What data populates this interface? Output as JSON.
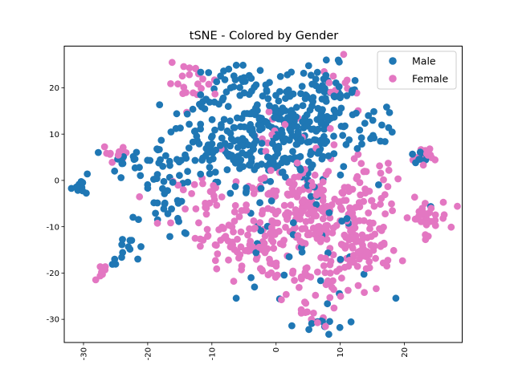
{
  "chart_data": {
    "type": "scatter",
    "title": "tSNE - Colored by Gender",
    "xlabel": "",
    "ylabel": "",
    "xlim": [
      -33,
      29
    ],
    "ylim": [
      -35,
      29
    ],
    "xticks": [
      -30,
      -20,
      -10,
      0,
      10,
      20
    ],
    "yticks": [
      -30,
      -20,
      -10,
      0,
      10,
      20
    ],
    "xtick_rotation": 90,
    "grid": false,
    "legend_position": "top-right",
    "series": [
      {
        "name": "Male",
        "color": "#1f77b4",
        "clusters": [
          {
            "cx": 1,
            "cy": 10,
            "sx": 5.5,
            "sy": 5.5,
            "n": 260
          },
          {
            "cx": 7,
            "cy": 19,
            "sx": 3.0,
            "sy": 3.0,
            "n": 50
          },
          {
            "cx": -7,
            "cy": 20,
            "sx": 3.0,
            "sy": 2.5,
            "n": 35
          },
          {
            "cx": -10,
            "cy": 7,
            "sx": 4.0,
            "sy": 5.0,
            "n": 60
          },
          {
            "cx": -17,
            "cy": -3,
            "sx": 2.0,
            "sy": 5.5,
            "n": 45
          },
          {
            "cx": -22,
            "cy": 4,
            "sx": 2.0,
            "sy": 2.0,
            "n": 18
          },
          {
            "cx": 15,
            "cy": 12,
            "sx": 2.0,
            "sy": 2.0,
            "n": 18
          },
          {
            "cx": -30,
            "cy": -1,
            "sx": 1.0,
            "sy": 1.0,
            "n": 10
          },
          {
            "cx": -23,
            "cy": -15,
            "sx": 1.5,
            "sy": 1.5,
            "n": 12
          },
          {
            "cx": 22,
            "cy": 5,
            "sx": 1.0,
            "sy": 1.0,
            "n": 8
          },
          {
            "cx": 2,
            "cy": -12,
            "sx": 7.0,
            "sy": 8.0,
            "n": 45
          },
          {
            "cx": 7,
            "cy": -31,
            "sx": 2.0,
            "sy": 1.0,
            "n": 10
          }
        ]
      },
      {
        "name": "Female",
        "color": "#e377c2",
        "clusters": [
          {
            "cx": 5,
            "cy": -7,
            "sx": 5.5,
            "sy": 5.0,
            "n": 210
          },
          {
            "cx": -5,
            "cy": -14,
            "sx": 3.5,
            "sy": 3.5,
            "n": 80
          },
          {
            "cx": 14,
            "cy": -15,
            "sx": 2.5,
            "sy": 2.5,
            "n": 60
          },
          {
            "cx": 7,
            "cy": -21,
            "sx": 4.0,
            "sy": 2.5,
            "n": 45
          },
          {
            "cx": 23,
            "cy": -8,
            "sx": 2.0,
            "sy": 2.0,
            "n": 35
          },
          {
            "cx": -13,
            "cy": 21,
            "sx": 2.0,
            "sy": 2.0,
            "n": 22
          },
          {
            "cx": -25,
            "cy": 6,
            "sx": 1.0,
            "sy": 0.8,
            "n": 12
          },
          {
            "cx": 24,
            "cy": 5,
            "sx": 1.2,
            "sy": 1.2,
            "n": 14
          },
          {
            "cx": -27,
            "cy": -19.5,
            "sx": 0.8,
            "sy": 0.7,
            "n": 8
          },
          {
            "cx": 6,
            "cy": -30,
            "sx": 1.5,
            "sy": 1.0,
            "n": 10
          },
          {
            "cx": -10,
            "cy": -4,
            "sx": 3.0,
            "sy": 3.0,
            "n": 30
          },
          {
            "cx": 14,
            "cy": -1,
            "sx": 3.0,
            "sy": 3.0,
            "n": 25
          },
          {
            "cx": 11,
            "cy": 20,
            "sx": 2.0,
            "sy": 3.0,
            "n": 12
          },
          {
            "cx": 1,
            "cy": 8,
            "sx": 4.0,
            "sy": 5.0,
            "n": 20
          }
        ]
      }
    ]
  }
}
